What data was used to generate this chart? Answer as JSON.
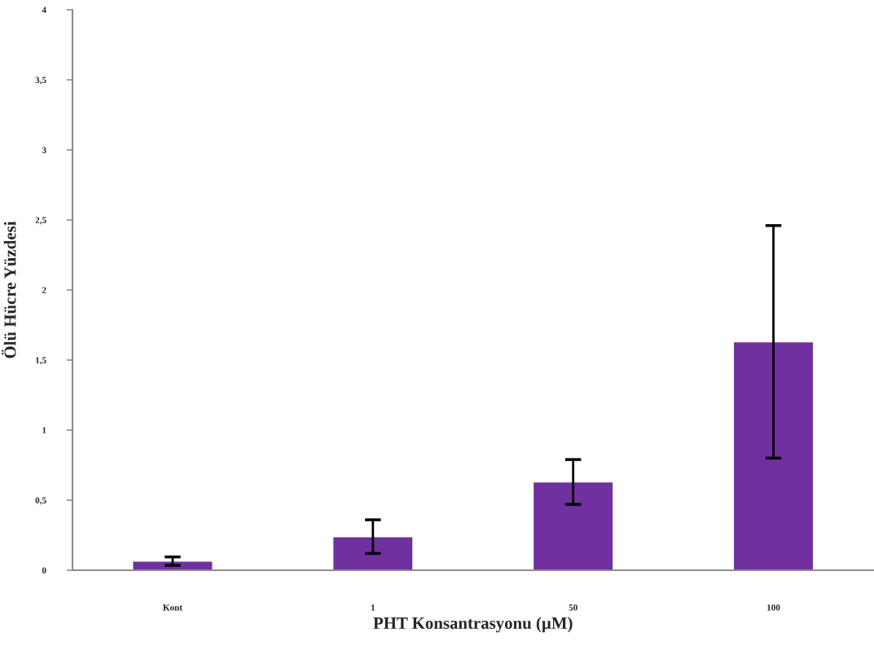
{
  "chart_data": {
    "type": "bar",
    "xlabel": "PHT Konsantrasyonu (µM)",
    "ylabel": "Ölü Hücre Yüzdesi",
    "categories": [
      "Kont",
      "1",
      "50",
      "100"
    ],
    "values": [
      0.065,
      0.24,
      0.63,
      1.63
    ],
    "errors": [
      0.03,
      0.12,
      0.16,
      0.83
    ],
    "color": "#7030a0",
    "ylim": [
      0,
      4
    ],
    "yticks": [
      0,
      {
        "value": 0.5,
        "label": "0,5"
      },
      1,
      {
        "value": 1.5,
        "label": "1,5"
      },
      2,
      {
        "value": 2.5,
        "label": "2,5"
      },
      3,
      {
        "value": 3.5,
        "label": "3,5"
      },
      4
    ]
  }
}
